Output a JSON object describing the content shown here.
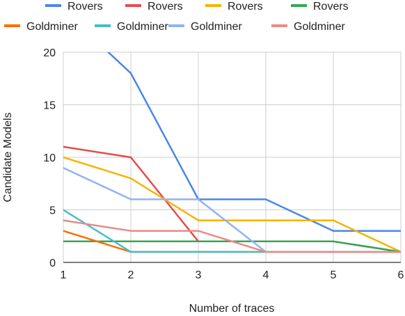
{
  "chart_data": {
    "type": "line",
    "title": "",
    "xlabel": "Number of traces",
    "ylabel": "Candidate Models",
    "x": [
      1,
      2,
      3,
      4,
      5,
      6
    ],
    "xlim": [
      1,
      6
    ],
    "ylim": [
      0,
      20
    ],
    "yticks": [
      0,
      5,
      10,
      15,
      20
    ],
    "grid": true,
    "legend_position": "top",
    "series": [
      {
        "name": "Rovers",
        "color": "#4a86e8",
        "values": [
          24,
          18,
          6,
          6,
          3,
          3
        ]
      },
      {
        "name": "Rovers",
        "color": "#e84a4a",
        "values": [
          11,
          10,
          2,
          2,
          2,
          1
        ]
      },
      {
        "name": "Rovers",
        "color": "#f4b400",
        "values": [
          10,
          8,
          4,
          4,
          4,
          1
        ]
      },
      {
        "name": "Rovers",
        "color": "#34a853",
        "values": [
          2,
          2,
          2,
          2,
          2,
          1
        ]
      },
      {
        "name": "Goldminer",
        "color": "#ff6d00",
        "values": [
          3,
          1,
          1,
          1,
          1,
          1
        ]
      },
      {
        "name": "Goldminer",
        "color": "#46bdc6",
        "values": [
          5,
          1,
          1,
          1,
          1,
          1
        ]
      },
      {
        "name": "Goldminer",
        "color": "#8fb4f0",
        "values": [
          9,
          6,
          6,
          1,
          1,
          1
        ]
      },
      {
        "name": "Goldminer",
        "color": "#ea8a86",
        "values": [
          4,
          3,
          3,
          1,
          1,
          1
        ]
      }
    ]
  }
}
